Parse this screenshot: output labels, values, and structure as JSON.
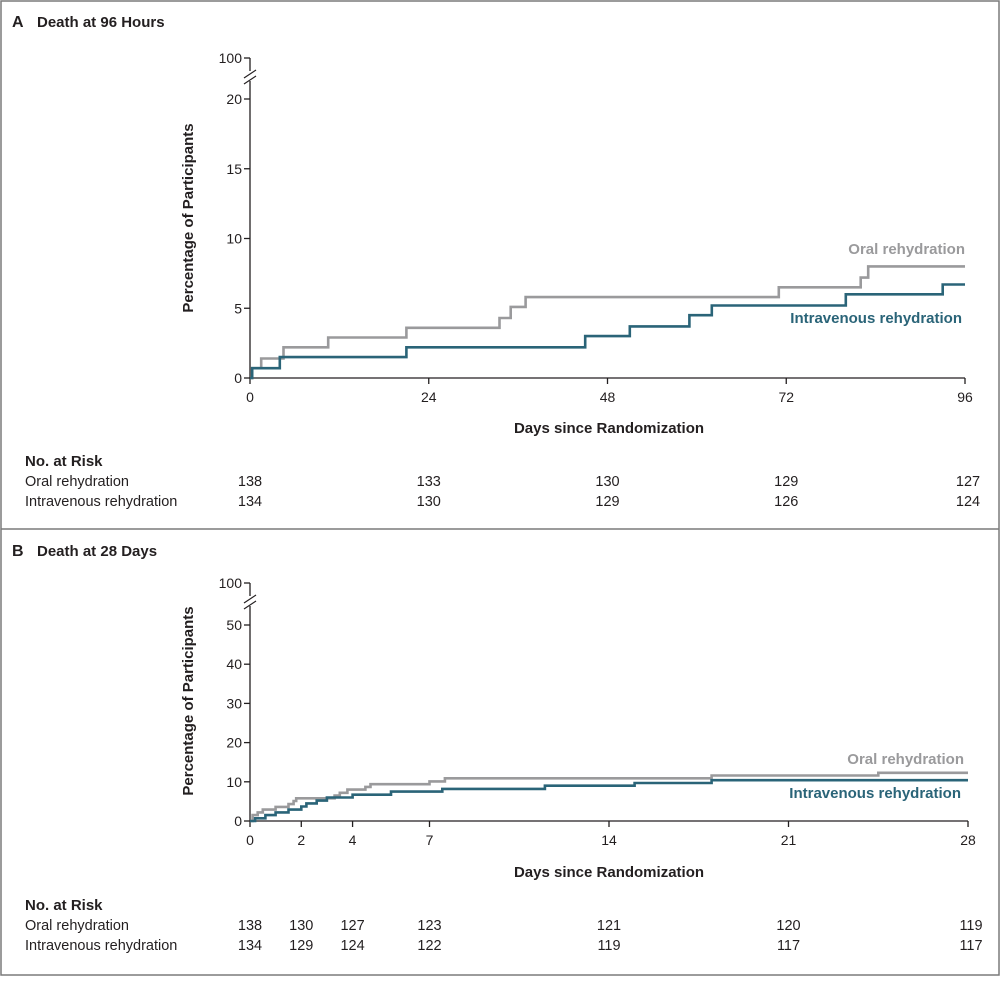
{
  "colors": {
    "oral": "#9a9a9c",
    "intravenous": "#2a6478",
    "axis": "#231f20"
  },
  "chart_data": [
    {
      "panel_letter": "A",
      "title": "Death at 96 Hours",
      "type": "line",
      "step": true,
      "xlabel": "Days since Randomization",
      "ylabel": "Percentage of Participants",
      "xlim": [
        0,
        96
      ],
      "x_ticks": [
        0,
        24,
        48,
        72,
        96
      ],
      "ylim": [
        0,
        20
      ],
      "y_ticks": [
        0,
        5,
        10,
        15,
        20
      ],
      "y_break_tick": 100,
      "series": [
        {
          "name": "Oral rehydration",
          "color_key": "oral",
          "points": [
            [
              0,
              0
            ],
            [
              0.3,
              0.7
            ],
            [
              1.5,
              1.4
            ],
            [
              4.5,
              2.2
            ],
            [
              10.5,
              2.9
            ],
            [
              21,
              3.6
            ],
            [
              33.5,
              4.3
            ],
            [
              35,
              5.1
            ],
            [
              37,
              5.8
            ],
            [
              71,
              6.5
            ],
            [
              82,
              7.2
            ],
            [
              83,
              8.0
            ],
            [
              96,
              8.0
            ]
          ]
        },
        {
          "name": "Intravenous rehydration",
          "color_key": "intravenous",
          "points": [
            [
              0,
              0
            ],
            [
              0.3,
              0.7
            ],
            [
              4,
              1.5
            ],
            [
              21,
              2.2
            ],
            [
              45,
              3.0
            ],
            [
              51,
              3.7
            ],
            [
              59,
              4.5
            ],
            [
              62,
              5.2
            ],
            [
              80,
              6.0
            ],
            [
              93,
              6.7
            ],
            [
              96,
              6.7
            ]
          ]
        }
      ],
      "risk_table": {
        "header": "No. at Risk",
        "rows": [
          {
            "label": "Oral rehydration",
            "values": [
              "138",
              "133",
              "130",
              "129",
              "127"
            ]
          },
          {
            "label": "Intravenous rehydration",
            "values": [
              "134",
              "130",
              "129",
              "126",
              "124"
            ]
          }
        ]
      }
    },
    {
      "panel_letter": "B",
      "title": "Death at 28 Days",
      "type": "line",
      "step": true,
      "xlabel": "Days since Randomization",
      "ylabel": "Percentage of Participants",
      "xlim": [
        0,
        28
      ],
      "x_ticks": [
        0,
        2,
        4,
        7,
        14,
        21,
        28
      ],
      "ylim": [
        0,
        50
      ],
      "y_ticks": [
        0,
        10,
        20,
        30,
        40,
        50
      ],
      "y_break_tick": 100,
      "series": [
        {
          "name": "Oral rehydration",
          "color_key": "oral",
          "points": [
            [
              0,
              0
            ],
            [
              0.1,
              1.5
            ],
            [
              0.3,
              2.2
            ],
            [
              0.5,
              2.9
            ],
            [
              1.0,
              3.6
            ],
            [
              1.5,
              4.3
            ],
            [
              1.7,
              5.1
            ],
            [
              1.8,
              5.8
            ],
            [
              3.3,
              6.5
            ],
            [
              3.5,
              7.2
            ],
            [
              3.8,
              8.0
            ],
            [
              4.5,
              8.7
            ],
            [
              4.7,
              9.4
            ],
            [
              7.0,
              10.1
            ],
            [
              7.6,
              10.9
            ],
            [
              18,
              11.6
            ],
            [
              24.5,
              12.3
            ],
            [
              28,
              12.3
            ]
          ]
        },
        {
          "name": "Intravenous rehydration",
          "color_key": "intravenous",
          "points": [
            [
              0,
              0
            ],
            [
              0.2,
              0.7
            ],
            [
              0.6,
              1.5
            ],
            [
              1.0,
              2.2
            ],
            [
              1.5,
              2.9
            ],
            [
              2.0,
              3.7
            ],
            [
              2.2,
              4.5
            ],
            [
              2.6,
              5.2
            ],
            [
              3.0,
              6.0
            ],
            [
              4.0,
              6.7
            ],
            [
              5.5,
              7.5
            ],
            [
              7.5,
              8.2
            ],
            [
              11.5,
              9.0
            ],
            [
              15,
              9.7
            ],
            [
              18,
              10.4
            ],
            [
              28,
              10.4
            ]
          ]
        }
      ],
      "risk_table": {
        "header": "No. at Risk",
        "rows": [
          {
            "label": "Oral rehydration",
            "values": [
              "138",
              "130",
              "127",
              "123",
              "121",
              "120",
              "119"
            ]
          },
          {
            "label": "Intravenous rehydration",
            "values": [
              "134",
              "129",
              "124",
              "122",
              "119",
              "117",
              "117"
            ]
          }
        ]
      }
    }
  ]
}
